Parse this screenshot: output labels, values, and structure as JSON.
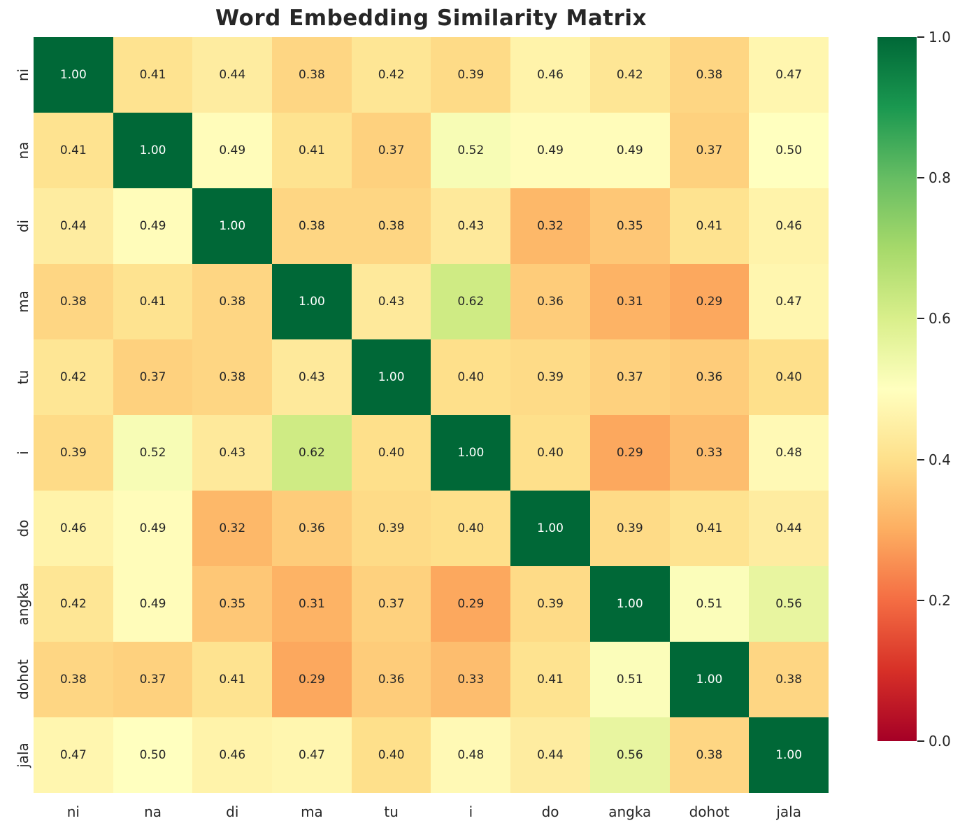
{
  "title": "Word Embedding Similarity Matrix",
  "chart_data": {
    "type": "heatmap",
    "title": "Word Embedding Similarity Matrix",
    "categories": [
      "ni",
      "na",
      "di",
      "ma",
      "tu",
      "i",
      "do",
      "angka",
      "dohot",
      "jala"
    ],
    "matrix": [
      [
        1.0,
        0.41,
        0.44,
        0.38,
        0.42,
        0.39,
        0.46,
        0.42,
        0.38,
        0.47
      ],
      [
        0.41,
        1.0,
        0.49,
        0.41,
        0.37,
        0.52,
        0.49,
        0.49,
        0.37,
        0.5
      ],
      [
        0.44,
        0.49,
        1.0,
        0.38,
        0.38,
        0.43,
        0.32,
        0.35,
        0.41,
        0.46
      ],
      [
        0.38,
        0.41,
        0.38,
        1.0,
        0.43,
        0.62,
        0.36,
        0.31,
        0.29,
        0.47
      ],
      [
        0.42,
        0.37,
        0.38,
        0.43,
        1.0,
        0.4,
        0.39,
        0.37,
        0.36,
        0.4
      ],
      [
        0.39,
        0.52,
        0.43,
        0.62,
        0.4,
        1.0,
        0.4,
        0.29,
        0.33,
        0.48
      ],
      [
        0.46,
        0.49,
        0.32,
        0.36,
        0.39,
        0.4,
        1.0,
        0.39,
        0.41,
        0.44
      ],
      [
        0.42,
        0.49,
        0.35,
        0.31,
        0.37,
        0.29,
        0.39,
        1.0,
        0.51,
        0.56
      ],
      [
        0.38,
        0.37,
        0.41,
        0.29,
        0.36,
        0.33,
        0.41,
        0.51,
        1.0,
        0.38
      ],
      [
        0.47,
        0.5,
        0.46,
        0.47,
        0.4,
        0.48,
        0.44,
        0.56,
        0.38,
        1.0
      ]
    ],
    "vmin": 0.0,
    "vmax": 1.0,
    "grid": false,
    "colormap_name": "RdYlGn",
    "colormap_stops": [
      "#a50026",
      "#d73027",
      "#f46d43",
      "#fdae61",
      "#fee08b",
      "#ffffbf",
      "#d9ef8b",
      "#a6d96a",
      "#66bd63",
      "#1a9850",
      "#006837"
    ],
    "colorbar_ticks": [
      1.0,
      0.8,
      0.6,
      0.4,
      0.2,
      0.0
    ],
    "colorbar_position": "right",
    "annot_dark_color": "#262626",
    "annot_light_color": "#ffffff",
    "title_color": "#262626",
    "tick_label_color": "#262626"
  }
}
